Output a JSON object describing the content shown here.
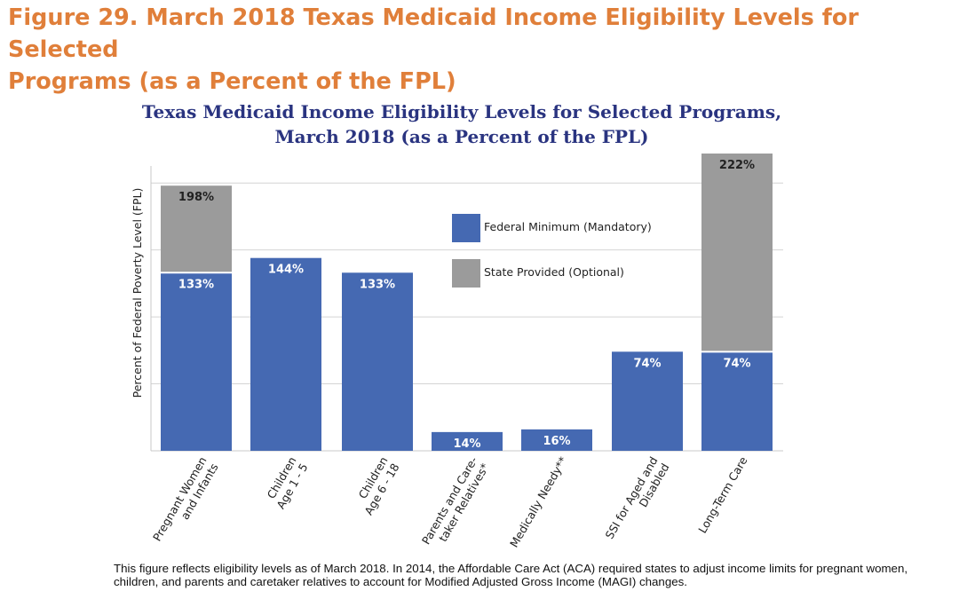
{
  "figure_title_line1": "Figure 29. March 2018 Texas Medicaid Income Eligibility Levels for Selected",
  "figure_title_line2": "Programs (as a Percent of the FPL)",
  "chart_title_line1": "Texas Medicaid Income Eligibility Levels for Selected Programs,",
  "chart_title_line2": "March 2018 (as a Percent of the FPL)",
  "footnote": "This figure reflects eligibility levels as of March 2018. In 2014, the Affordable Care Act (ACA) required states to adjust income limits for pregnant women, children, and parents and caretaker relatives to account for Modified Adjusted Gross Income (MAGI) changes.",
  "chart_data": {
    "type": "bar",
    "stacked": true,
    "title": "Texas Medicaid Income Eligibility Levels for Selected Programs, March 2018 (as a Percent of the FPL)",
    "ylabel": "Percent of Federal Poverty Level (FPL)",
    "xlabel": "",
    "ylim": [
      0,
      222
    ],
    "grid": true,
    "legend_position": "top-right",
    "categories": [
      [
        "Pregnant Women",
        "and Infants"
      ],
      [
        "Children",
        "Age 1 - 5"
      ],
      [
        "Children",
        "Age 6 - 18"
      ],
      [
        "Parents and Care-",
        "taker Relatives*"
      ],
      [
        "Medically Needy**"
      ],
      [
        "SSI for Aged and",
        "Disabled"
      ],
      [
        "Long-Term Care"
      ]
    ],
    "series": [
      {
        "name": "Federal Minimum (Mandatory)",
        "color": "#4569b2",
        "values": [
          133,
          144,
          133,
          14,
          16,
          74,
          74
        ],
        "labels": [
          "133%",
          "144%",
          "133%",
          "14%",
          "16%",
          "74%",
          "74%"
        ]
      },
      {
        "name": "State Provided (Optional)",
        "color": "#9b9b9b",
        "values": [
          65,
          0,
          0,
          0,
          0,
          0,
          148
        ],
        "totals": [
          198,
          null,
          null,
          null,
          null,
          null,
          222
        ],
        "labels": [
          "198%",
          "",
          "",
          "",
          "",
          "",
          "222%"
        ]
      }
    ]
  }
}
